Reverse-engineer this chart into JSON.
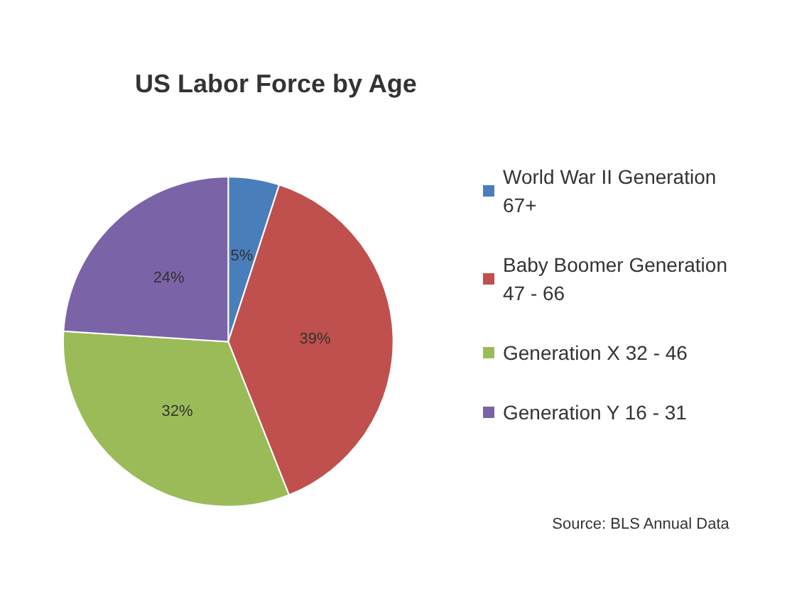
{
  "chart_data": {
    "type": "pie",
    "title": "US Labor Force by Age",
    "categories": [
      "World War II Generation 67+",
      "Baby Boomer Generation 47 - 66",
      "Generation X 32 - 46",
      "Generation Y 16 - 31"
    ],
    "values": [
      5,
      39,
      32,
      24
    ],
    "colors": [
      "#4a7ebb",
      "#c0504d",
      "#9bbb59",
      "#7b63a8"
    ],
    "value_labels": [
      "5%",
      "39%",
      "32%",
      "24%"
    ],
    "legend": "right",
    "annotations": [
      "Source: BLS Annual Data"
    ]
  }
}
